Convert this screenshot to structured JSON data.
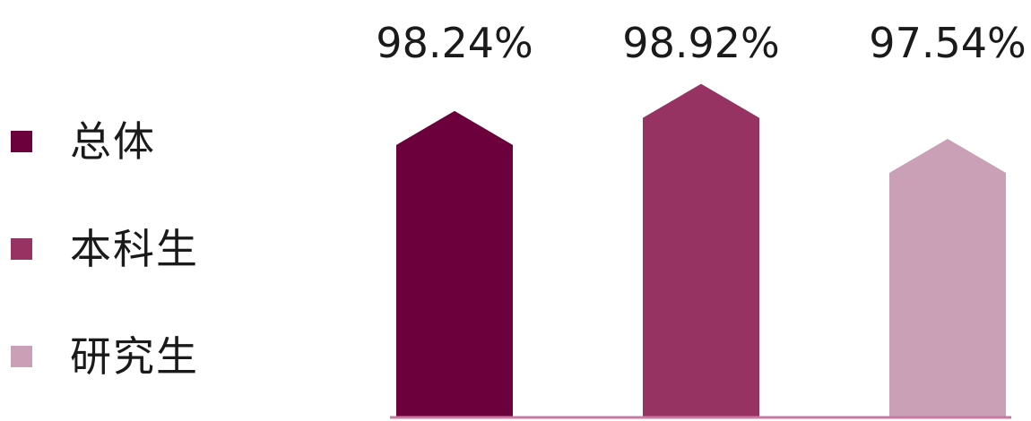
{
  "chart_data": {
    "type": "bar",
    "categories": [
      "总体",
      "本科生",
      "研究生"
    ],
    "values": [
      98.24,
      98.92,
      97.54
    ],
    "value_labels": [
      "98.24%",
      "98.92%",
      "97.54%"
    ],
    "unit": "%",
    "colors": [
      "#6b003c",
      "#963362",
      "#c9a0b6"
    ],
    "ylim": [
      90,
      100
    ],
    "legend_position": "left",
    "grid": false,
    "bar_shape": "pentagon-arrow"
  }
}
